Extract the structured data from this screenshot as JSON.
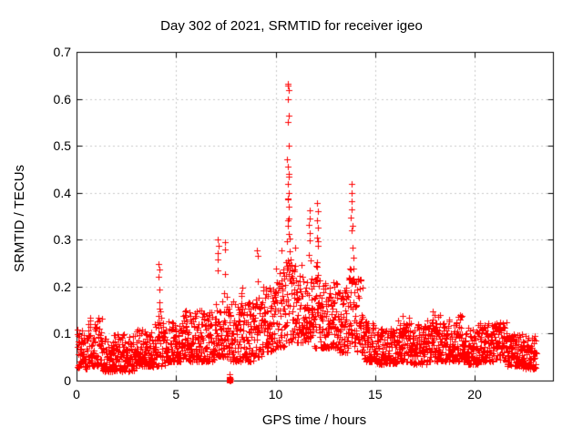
{
  "page": {
    "background": "#ffffff",
    "text_color": "#000000"
  },
  "chart_data": {
    "type": "scatter",
    "title": "Day 302 of 2021, SRMTID for receiver igeo",
    "xlabel": "GPS time / hours",
    "ylabel": "SRMTID / TECUs",
    "xlim": [
      0,
      23.93
    ],
    "ylim": [
      0,
      0.7
    ],
    "xticks": [
      0,
      5,
      10,
      15,
      20
    ],
    "x_tick_labels": [
      "0",
      "5",
      "10",
      "15",
      "20"
    ],
    "yticks": [
      0,
      0.1,
      0.2,
      0.3,
      0.4,
      0.5,
      0.6,
      0.7
    ],
    "y_tick_labels": [
      "0",
      "0.1",
      "0.2",
      "0.3",
      "0.4",
      "0.5",
      "0.6",
      "0.7"
    ],
    "grid": "dashed",
    "grid_color": "#c8c8c8",
    "border_color": "#000000",
    "legend": "none",
    "marker": {
      "shape": "plus",
      "color": "#ff0000",
      "size": 7
    },
    "series_name": "SRMTID",
    "n_points": 2600,
    "time_range": [
      0.03,
      23.1
    ],
    "max_point": [
      10.64,
      0.63
    ],
    "seed": 302,
    "baseline_band": [
      [
        0.0,
        0.5,
        0.025,
        0.11
      ],
      [
        0.5,
        1.3,
        0.03,
        0.135
      ],
      [
        1.3,
        3.0,
        0.02,
        0.1
      ],
      [
        3.0,
        3.9,
        0.03,
        0.11
      ],
      [
        3.9,
        4.45,
        0.03,
        0.13
      ],
      [
        4.45,
        5.25,
        0.04,
        0.13
      ],
      [
        5.25,
        5.75,
        0.04,
        0.15
      ],
      [
        5.75,
        6.9,
        0.04,
        0.15
      ],
      [
        6.9,
        7.65,
        0.05,
        0.17
      ],
      [
        7.65,
        8.9,
        0.04,
        0.17
      ],
      [
        8.9,
        9.35,
        0.05,
        0.18
      ],
      [
        9.35,
        10.0,
        0.06,
        0.2
      ],
      [
        10.0,
        10.5,
        0.07,
        0.24
      ],
      [
        10.5,
        10.8,
        0.08,
        0.26
      ],
      [
        10.8,
        11.55,
        0.08,
        0.25
      ],
      [
        11.55,
        11.85,
        0.08,
        0.22
      ],
      [
        11.85,
        12.3,
        0.07,
        0.22
      ],
      [
        12.3,
        13.1,
        0.07,
        0.21
      ],
      [
        13.1,
        13.6,
        0.06,
        0.2
      ],
      [
        13.6,
        14.05,
        0.07,
        0.24
      ],
      [
        14.05,
        14.45,
        0.06,
        0.22
      ],
      [
        14.45,
        15.1,
        0.04,
        0.13
      ],
      [
        15.1,
        16.15,
        0.035,
        0.11
      ],
      [
        16.15,
        16.8,
        0.04,
        0.14
      ],
      [
        16.8,
        17.6,
        0.035,
        0.12
      ],
      [
        17.6,
        18.3,
        0.04,
        0.14
      ],
      [
        18.3,
        19.0,
        0.04,
        0.13
      ],
      [
        19.0,
        19.65,
        0.04,
        0.14
      ],
      [
        19.65,
        20.2,
        0.035,
        0.12
      ],
      [
        20.2,
        21.6,
        0.04,
        0.125
      ],
      [
        21.6,
        22.4,
        0.03,
        0.1
      ],
      [
        22.4,
        23.1,
        0.025,
        0.095
      ]
    ],
    "peaks": [
      [
        4.15,
        0.25,
        0.12
      ],
      [
        5.5,
        0.22,
        0.1
      ],
      [
        7.1,
        0.3,
        0.12
      ],
      [
        7.45,
        0.29,
        0.1
      ],
      [
        8.3,
        0.21,
        0.15
      ],
      [
        9.1,
        0.28,
        0.08
      ],
      [
        9.9,
        0.26,
        0.08
      ],
      [
        10.3,
        0.3,
        0.1
      ],
      [
        10.64,
        0.63,
        0.09
      ],
      [
        11.0,
        0.3,
        0.12
      ],
      [
        11.7,
        0.36,
        0.07
      ],
      [
        12.1,
        0.38,
        0.08
      ],
      [
        12.9,
        0.25,
        0.1
      ],
      [
        13.82,
        0.42,
        0.09
      ],
      [
        14.2,
        0.3,
        0.08
      ],
      [
        16.55,
        0.175,
        0.1
      ],
      [
        17.95,
        0.19,
        0.12
      ],
      [
        19.35,
        0.165,
        0.1
      ],
      [
        21.1,
        0.145,
        0.3
      ]
    ],
    "peak_column_points": [
      [
        10.6,
        0.632
      ],
      [
        10.63,
        0.628
      ],
      [
        10.65,
        0.618
      ],
      [
        10.62,
        0.6
      ],
      [
        10.64,
        0.565
      ],
      [
        10.61,
        0.55
      ],
      [
        10.66,
        0.5
      ],
      [
        10.59,
        0.472
      ],
      [
        10.63,
        0.455
      ],
      [
        10.67,
        0.44
      ],
      [
        10.62,
        0.418
      ],
      [
        10.65,
        0.4
      ],
      [
        10.6,
        0.385
      ],
      [
        10.64,
        0.37
      ],
      [
        10.68,
        0.345
      ],
      [
        10.61,
        0.33
      ],
      [
        10.66,
        0.312
      ],
      [
        10.58,
        0.297
      ],
      [
        10.7,
        0.275
      ],
      [
        10.63,
        0.255
      ],
      [
        11.7,
        0.362
      ],
      [
        11.72,
        0.345
      ],
      [
        11.68,
        0.332
      ],
      [
        11.71,
        0.315
      ],
      [
        11.73,
        0.298
      ],
      [
        12.08,
        0.378
      ],
      [
        12.11,
        0.36
      ],
      [
        12.09,
        0.342
      ],
      [
        12.12,
        0.325
      ],
      [
        12.07,
        0.305
      ],
      [
        13.8,
        0.418
      ],
      [
        13.83,
        0.4
      ],
      [
        13.81,
        0.382
      ],
      [
        13.84,
        0.365
      ],
      [
        13.79,
        0.347
      ],
      [
        13.85,
        0.33
      ],
      [
        7.08,
        0.3
      ],
      [
        7.12,
        0.287
      ],
      [
        7.1,
        0.272
      ],
      [
        7.45,
        0.295
      ],
      [
        7.48,
        0.28
      ],
      [
        4.12,
        0.248
      ],
      [
        4.15,
        0.237
      ],
      [
        4.13,
        0.222
      ],
      [
        9.08,
        0.278
      ],
      [
        9.12,
        0.265
      ]
    ],
    "zero_cluster_points": [
      [
        7.68,
        0.0
      ],
      [
        7.71,
        0.0
      ],
      [
        7.73,
        0.004
      ],
      [
        7.7,
        0.013
      ]
    ],
    "zero_square_point": [
      7.7,
      0.002
    ]
  }
}
